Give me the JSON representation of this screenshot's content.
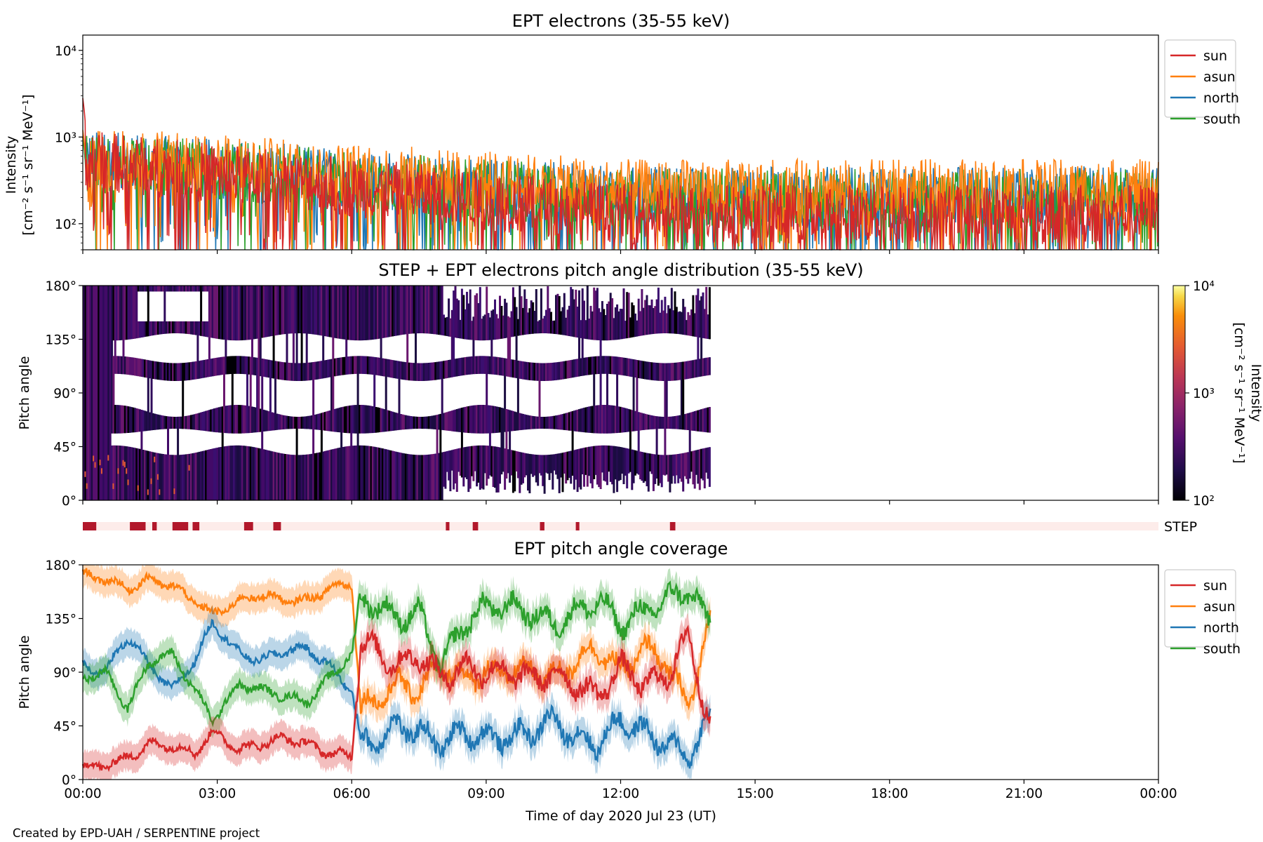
{
  "chart_data": [
    {
      "type": "line",
      "title": "EPT electrons (35-55 keV)",
      "ylabel_line1": "Intensity",
      "ylabel_line2": "[cm⁻² s⁻¹ sr⁻¹ MeV⁻¹]",
      "yscale": "log",
      "ylim": [
        50,
        15000
      ],
      "yticks": [
        {
          "value": 100,
          "label": "10²"
        },
        {
          "value": 1000,
          "label": "10³"
        },
        {
          "value": 10000,
          "label": "10⁴"
        }
      ],
      "xlim_hours": [
        0,
        24
      ],
      "legend_position": "top-right",
      "series": [
        {
          "name": "sun",
          "color": "#d62728",
          "initial_peak": 2800,
          "typical_start": 500,
          "typical_end": 120
        },
        {
          "name": "asun",
          "color": "#ff7f0e",
          "initial_peak": 1200,
          "typical_start": 550,
          "typical_end": 230
        },
        {
          "name": "north",
          "color": "#1f77b4",
          "initial_peak": 1000,
          "typical_start": 500,
          "typical_end": 190
        },
        {
          "name": "south",
          "color": "#2ca02c",
          "initial_peak": 1000,
          "typical_start": 480,
          "typical_end": 180
        }
      ]
    },
    {
      "type": "heatmap",
      "title": "STEP + EPT electrons pitch angle distribution (35-55 keV)",
      "ylabel": "Pitch angle",
      "ylim": [
        0,
        180
      ],
      "yticks": [
        "0°",
        "45°",
        "90°",
        "135°",
        "180°"
      ],
      "data_extent_hours": [
        0,
        14
      ],
      "colorbar": {
        "label_line1": "Intensity",
        "label_line2": "[cm⁻² s⁻¹ sr⁻¹ MeV⁻¹]",
        "scale": "log",
        "range": [
          100,
          10000
        ],
        "ticks": [
          {
            "value": 100,
            "label": "10²"
          },
          {
            "value": 1000,
            "label": "10³"
          },
          {
            "value": 10000,
            "label": "10⁴"
          }
        ],
        "colormap": "inferno"
      }
    },
    {
      "type": "bar",
      "label": "STEP",
      "bar_color": "#b2182b",
      "background_color": "#fdecea",
      "intervals_hours": [
        [
          0.0,
          0.3
        ],
        [
          1.05,
          1.4
        ],
        [
          1.55,
          1.65
        ],
        [
          2.0,
          2.35
        ],
        [
          2.45,
          2.6
        ],
        [
          3.6,
          3.8
        ],
        [
          4.25,
          4.42
        ],
        [
          8.1,
          8.18
        ],
        [
          8.7,
          8.82
        ],
        [
          10.2,
          10.3
        ],
        [
          11.0,
          11.08
        ],
        [
          13.1,
          13.22
        ]
      ]
    },
    {
      "type": "line",
      "title": "EPT pitch angle coverage",
      "ylabel": "Pitch angle",
      "ylim": [
        0,
        180
      ],
      "yticks": [
        "0°",
        "45°",
        "90°",
        "135°",
        "180°"
      ],
      "data_extent_hours": [
        0,
        14
      ],
      "legend_position": "top-right",
      "series": [
        {
          "name": "sun",
          "color": "#d62728",
          "x": [
            0,
            0.5,
            1,
            1.5,
            2,
            2.5,
            2.9,
            3.5,
            4,
            4.5,
            5,
            5.5,
            6.0,
            6.2,
            6.5,
            7,
            7.5,
            8,
            8.5,
            9,
            9.5,
            10,
            10.5,
            11,
            11.5,
            12,
            12.5,
            13,
            13.5,
            14
          ],
          "y": [
            10,
            12,
            18,
            30,
            28,
            22,
            40,
            25,
            30,
            35,
            30,
            22,
            20,
            115,
            110,
            95,
            105,
            85,
            95,
            90,
            90,
            85,
            88,
            80,
            70,
            95,
            80,
            85,
            120,
            45
          ]
        },
        {
          "name": "asun",
          "color": "#ff7f0e",
          "x": [
            0,
            0.5,
            1,
            1.5,
            2,
            2.5,
            2.9,
            3.5,
            4,
            4.5,
            5,
            5.5,
            6.0,
            6.2,
            6.5,
            7,
            7.5,
            8,
            8.5,
            9,
            9.5,
            10,
            10.5,
            11,
            11.5,
            12,
            12.5,
            13,
            13.5,
            14
          ],
          "y": [
            172,
            168,
            160,
            168,
            162,
            150,
            138,
            150,
            155,
            150,
            150,
            160,
            165,
            60,
            65,
            80,
            75,
            95,
            85,
            90,
            90,
            92,
            85,
            100,
            110,
            90,
            110,
            100,
            60,
            135
          ]
        },
        {
          "name": "north",
          "color": "#1f77b4",
          "x": [
            0,
            0.5,
            1,
            1.5,
            2,
            2.5,
            2.9,
            3.5,
            4,
            4.5,
            5,
            5.5,
            6.0,
            6.2,
            6.5,
            7,
            7.5,
            8,
            8.5,
            9,
            9.5,
            10,
            10.5,
            11,
            11.5,
            12,
            12.5,
            13,
            13.5,
            14
          ],
          "y": [
            95,
            90,
            120,
            95,
            75,
            100,
            132,
            105,
            100,
            108,
            110,
            95,
            75,
            30,
            32,
            45,
            40,
            30,
            40,
            35,
            35,
            40,
            50,
            35,
            30,
            50,
            40,
            30,
            20,
            50
          ]
        },
        {
          "name": "south",
          "color": "#2ca02c",
          "x": [
            0,
            0.5,
            1,
            1.5,
            2,
            2.5,
            2.9,
            3.5,
            4,
            4.5,
            5,
            5.5,
            6.0,
            6.2,
            6.5,
            7,
            7.5,
            8,
            8.5,
            9,
            9.5,
            10,
            10.5,
            11,
            11.5,
            12,
            12.5,
            13,
            13.5,
            14
          ],
          "y": [
            85,
            90,
            60,
            100,
            105,
            75,
            50,
            80,
            75,
            70,
            65,
            85,
            105,
            150,
            148,
            135,
            140,
            95,
            130,
            145,
            145,
            140,
            130,
            140,
            150,
            130,
            140,
            150,
            160,
            130
          ]
        }
      ]
    }
  ],
  "xaxis": {
    "tick_labels": [
      "00:00",
      "03:00",
      "06:00",
      "09:00",
      "12:00",
      "15:00",
      "18:00",
      "21:00",
      "00:00"
    ],
    "label": "Time of day 2020 Jul 23 (UT)"
  },
  "credit": "Created by EPD-UAH / SERPENTINE project"
}
